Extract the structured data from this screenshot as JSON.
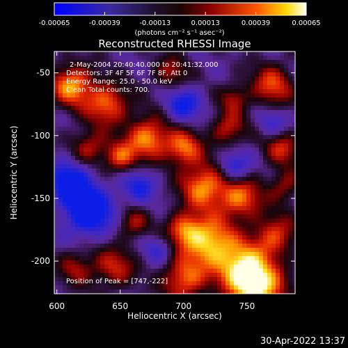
{
  "chart_data": {
    "type": "heatmap",
    "title": "Reconstructed RHESSI Image",
    "xlabel": "Heliocentric X (arcsec)",
    "ylabel": "Heliocentric Y (arcsec)",
    "xlim": [
      598,
      788
    ],
    "ylim": [
      -226,
      -33
    ],
    "x_ticks": [
      600,
      650,
      700,
      750
    ],
    "y_ticks": [
      -50,
      -100,
      -150,
      -200
    ],
    "colorbar": {
      "ticks": [
        "-0.00065",
        "-0.00039",
        "-0.00013",
        "0.00013",
        "0.00039",
        "0.00065"
      ],
      "range": [
        -0.00065,
        0.00065
      ],
      "units": "(photons cm⁻² s⁻¹ asec⁻²)",
      "colors": [
        "#0000ff",
        "#5a1aa8",
        "#1a0a1a",
        "#7a0000",
        "#ff4000",
        "#ffe000",
        "#ffffff"
      ]
    },
    "annotations": [
      "2-May-2004 20:40:40.000 to 20:41:32.000",
      "Detectors: 3F 4F 5F 6F 7F 8F, Att 0",
      "Energy Range: 25.0 - 50.0 keV",
      "Clean     Total counts: 700."
    ],
    "peak_label": "Position of Peak = [747,-222]",
    "peak": [
      747,
      -222
    ]
  },
  "timestamp": "30-Apr-2022 13:37"
}
